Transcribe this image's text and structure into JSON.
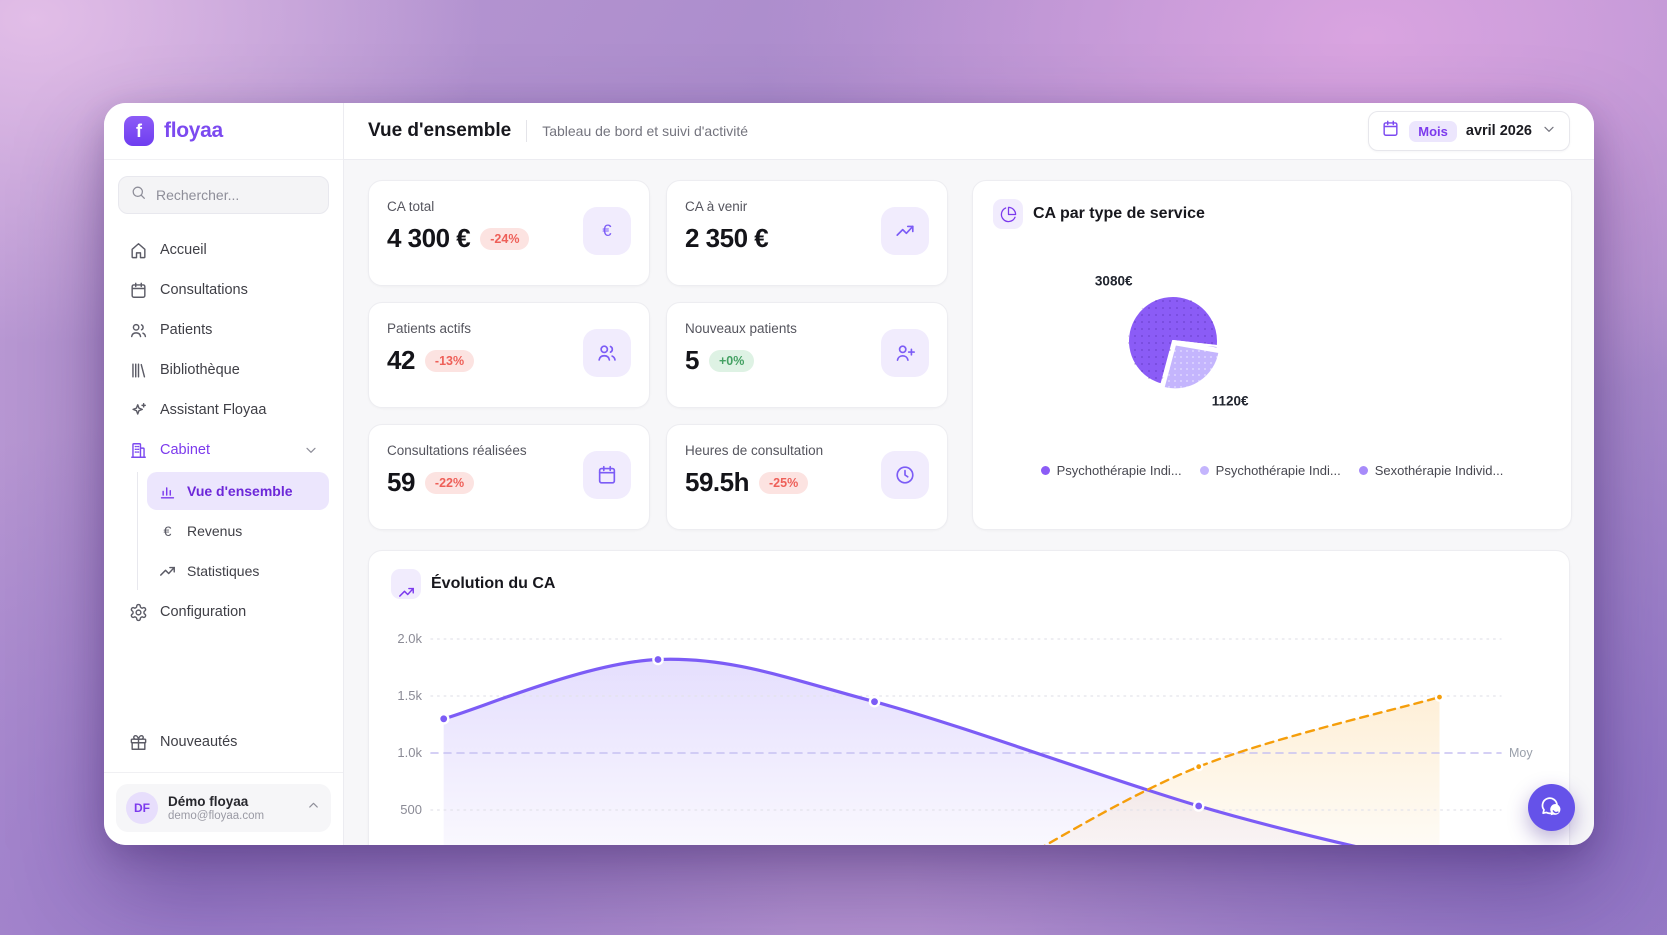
{
  "colors": {
    "accent": "#7c5cf6",
    "accent_dark": "#7c3aed",
    "badge_down_bg": "#fce3e1",
    "badge_down_text": "#ee5f58",
    "badge_up_bg": "#def2e4",
    "badge_up_text": "#44a163",
    "orange": "#f59e0b"
  },
  "sidebar": {
    "brand": "floyaa",
    "logo_letter": "f",
    "search_placeholder": "Rechercher...",
    "nav": [
      {
        "label": "Accueil",
        "icon": "home"
      },
      {
        "label": "Consultations",
        "icon": "calendar"
      },
      {
        "label": "Patients",
        "icon": "users"
      },
      {
        "label": "Bibliothèque",
        "icon": "library"
      },
      {
        "label": "Assistant Floyaa",
        "icon": "sparkles"
      },
      {
        "label": "Cabinet",
        "icon": "building",
        "accent": true,
        "expanded": true
      }
    ],
    "cabinet_children": [
      {
        "label": "Vue d'ensemble",
        "icon": "chart-bars",
        "active": true
      },
      {
        "label": "Revenus",
        "icon": "euro"
      },
      {
        "label": "Statistiques",
        "icon": "trend"
      }
    ],
    "nav_after": [
      {
        "label": "Configuration",
        "icon": "gear"
      }
    ],
    "nav_bottom": [
      {
        "label": "Nouveautés",
        "icon": "gift"
      }
    ],
    "user": {
      "initials": "DF",
      "name": "Démo floyaa",
      "email": "demo@floyaa.com"
    }
  },
  "header": {
    "title": "Vue d'ensemble",
    "subtitle": "Tableau de bord et suivi d'activité",
    "period_badge": "Mois",
    "period_value": "avril 2026"
  },
  "stats": [
    {
      "label": "CA total",
      "value": "4 300 €",
      "delta": "-24%",
      "delta_type": "down",
      "icon": "euro"
    },
    {
      "label": "CA à venir",
      "value": "2 350 €",
      "delta": null,
      "delta_type": null,
      "icon": "trend"
    },
    {
      "label": "Patients actifs",
      "value": "42",
      "delta": "-13%",
      "delta_type": "down",
      "icon": "users"
    },
    {
      "label": "Nouveaux patients",
      "value": "5",
      "delta": "+0%",
      "delta_type": "up",
      "icon": "user-plus"
    },
    {
      "label": "Consultations réalisées",
      "value": "59",
      "delta": "-22%",
      "delta_type": "down",
      "icon": "calendar"
    },
    {
      "label": "Heures de consultation",
      "value": "59.5h",
      "delta": "-25%",
      "delta_type": "down",
      "icon": "clock"
    }
  ],
  "chart_data": [
    {
      "type": "pie",
      "title": "CA par type de service",
      "start_angle_deg": 195,
      "order_clockwise": [
        0,
        2,
        1
      ],
      "slices": [
        {
          "name": "Psychothérapie Indi...",
          "value": 3080,
          "label": "3080€",
          "color": "#8b5cf6",
          "dots": "dark"
        },
        {
          "name": "Psychothérapie Indi...",
          "value": 1120,
          "label": "1120€",
          "color": "#c4b5fd",
          "dots": "light",
          "exploded": true
        },
        {
          "name": "Sexothérapie Individ...",
          "value": 40,
          "label": "",
          "color": "#a78bfa"
        }
      ],
      "legend_position": "bottom"
    },
    {
      "type": "line",
      "title": "Évolution du CA",
      "ylim": [
        0,
        2000
      ],
      "yticks": [
        {
          "value": 2000,
          "label": "2.0k"
        },
        {
          "value": 1500,
          "label": "1.5k"
        },
        {
          "value": 1000,
          "label": "1.0k"
        },
        {
          "value": 500,
          "label": "500"
        }
      ],
      "average_line": {
        "value": 1000,
        "label": "Moy"
      },
      "grid": "dotted",
      "x_axis_labels_visible": false,
      "series": [
        {
          "color": "#7c5cf6",
          "style": "solid",
          "area": true,
          "points": [
            {
              "x": 0.012,
              "y": 1300,
              "dot": true
            },
            {
              "x": 0.215,
              "y": 1820,
              "dot": true
            },
            {
              "x": 0.42,
              "y": 1450,
              "dot": true
            },
            {
              "x": 0.727,
              "y": 535,
              "dot": true
            },
            {
              "x": 0.93,
              "y": 60,
              "dot": false
            }
          ]
        },
        {
          "color": "#f59e0b",
          "style": "dashed",
          "area": true,
          "points": [
            {
              "x": 0.54,
              "y": -30,
              "dot": false
            },
            {
              "x": 0.727,
              "y": 880,
              "dot": true
            },
            {
              "x": 0.955,
              "y": 1490,
              "dot": true
            }
          ]
        }
      ]
    }
  ]
}
